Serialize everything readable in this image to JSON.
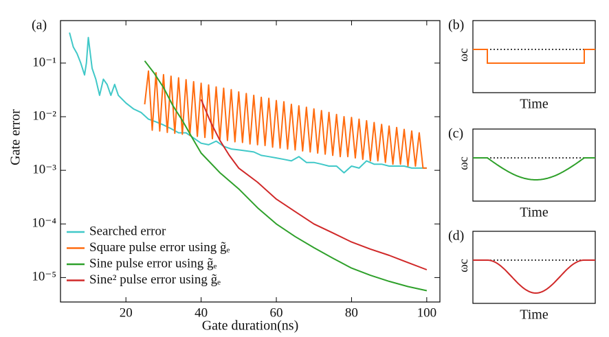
{
  "chart_data": {
    "type": "line",
    "panel_label": "(a)",
    "xlabel": "Gate duration(ns)",
    "ylabel": "Gate error",
    "log_y": true,
    "xlim": [
      2.6,
      103.5
    ],
    "ylim": [
      3.5e-06,
      0.62
    ],
    "xticks": [
      20,
      40,
      60,
      80,
      100
    ],
    "yticks": [
      {
        "value": 0.1,
        "label": "10⁻¹"
      },
      {
        "value": 0.01,
        "label": "10⁻²"
      },
      {
        "value": 0.001,
        "label": "10⁻³"
      },
      {
        "value": 0.0001,
        "label": "10⁻⁴"
      },
      {
        "value": 1e-05,
        "label": "10⁻⁵"
      }
    ],
    "legend": "lower left",
    "series": [
      {
        "name": "Searched error",
        "color": "#40c8c8",
        "x": [
          5,
          6,
          7,
          8,
          9,
          9.5,
          10,
          11,
          12,
          13,
          14,
          15,
          16,
          17,
          18,
          20,
          22,
          24,
          26,
          28,
          30,
          32,
          34,
          36,
          38,
          40,
          42,
          44,
          46,
          48,
          50,
          52,
          54,
          56,
          58,
          60,
          62,
          64,
          66,
          68,
          70,
          72,
          74,
          76,
          78,
          80,
          82,
          84,
          86,
          88,
          90,
          92,
          94,
          96,
          98,
          100
        ],
        "values": [
          0.37,
          0.2,
          0.15,
          0.1,
          0.06,
          0.1,
          0.3,
          0.08,
          0.05,
          0.025,
          0.05,
          0.04,
          0.025,
          0.04,
          0.025,
          0.018,
          0.014,
          0.012,
          0.009,
          0.008,
          0.007,
          0.006,
          0.005,
          0.005,
          0.004,
          0.0032,
          0.003,
          0.0035,
          0.0028,
          0.0025,
          0.0024,
          0.0023,
          0.0022,
          0.0019,
          0.0018,
          0.0017,
          0.0016,
          0.0015,
          0.0018,
          0.0014,
          0.0014,
          0.0013,
          0.0012,
          0.0012,
          0.0009,
          0.0012,
          0.0011,
          0.0015,
          0.0013,
          0.0013,
          0.0012,
          0.0012,
          0.0012,
          0.0011,
          0.0011,
          0.0011
        ]
      },
      {
        "name": "Square pulse error using g̃ₑ",
        "color": "#ff6c10",
        "x": [
          25,
          26,
          27,
          28,
          29,
          30,
          31,
          32,
          33,
          34,
          35,
          36,
          37,
          38,
          39,
          40,
          41,
          42,
          43,
          44,
          45,
          46,
          47,
          48,
          49,
          50,
          51,
          52,
          53,
          54,
          55,
          56,
          57,
          58,
          59,
          60,
          61,
          62,
          63,
          64,
          65,
          66,
          67,
          68,
          69,
          70,
          71,
          72,
          73,
          74,
          75,
          76,
          77,
          78,
          79,
          80,
          81,
          82,
          83,
          84,
          85,
          86,
          87,
          88,
          89,
          90,
          91,
          92,
          93,
          94,
          95,
          96,
          97,
          98,
          99,
          100
        ],
        "values": [
          0.017,
          0.071,
          0.0056,
          0.066,
          0.0054,
          0.061,
          0.0051,
          0.057,
          0.0049,
          0.053,
          0.0047,
          0.049,
          0.0045,
          0.045,
          0.0043,
          0.042,
          0.0041,
          0.039,
          0.0039,
          0.036,
          0.0038,
          0.034,
          0.0036,
          0.032,
          0.0034,
          0.029,
          0.0033,
          0.027,
          0.0031,
          0.025,
          0.003,
          0.023,
          0.0029,
          0.022,
          0.0027,
          0.02,
          0.0026,
          0.019,
          0.0025,
          0.017,
          0.0024,
          0.016,
          0.0023,
          0.015,
          0.0022,
          0.014,
          0.0021,
          0.013,
          0.002,
          0.012,
          0.0019,
          0.011,
          0.0018,
          0.01,
          0.0018,
          0.0097,
          0.0017,
          0.009,
          0.0016,
          0.0084,
          0.0015,
          0.0078,
          0.0015,
          0.0072,
          0.0014,
          0.0067,
          0.0013,
          0.0063,
          0.0013,
          0.0058,
          0.0012,
          0.0054,
          0.0012,
          0.005,
          0.0011,
          0.0011
        ]
      },
      {
        "name": "Sine pulse error using g̃ₑ",
        "color": "#2ea02a",
        "x": [
          25,
          27.5,
          30,
          32.5,
          35,
          37.5,
          40,
          45,
          50,
          55,
          60,
          65,
          70,
          75,
          80,
          85,
          90,
          95,
          100
        ],
        "values": [
          0.11,
          0.065,
          0.035,
          0.016,
          0.0085,
          0.0042,
          0.0021,
          0.0009,
          0.00045,
          0.0002,
          0.0001,
          5.8e-05,
          3.6e-05,
          2.3e-05,
          1.5e-05,
          1.1e-05,
          8.5e-06,
          6.8e-06,
          5.7e-06
        ]
      },
      {
        "name": "Sine² pulse error using g̃ₑ",
        "color": "#d02828",
        "x": [
          40,
          42.5,
          45,
          47.5,
          50,
          55,
          60,
          65,
          70,
          75,
          80,
          85,
          90,
          95,
          100
        ],
        "values": [
          0.021,
          0.008,
          0.0036,
          0.0019,
          0.0011,
          0.0006,
          0.00029,
          0.00017,
          0.0001,
          6.8e-05,
          4.6e-05,
          3.4e-05,
          2.6e-05,
          1.9e-05,
          1.4e-05
        ]
      }
    ]
  },
  "panels": [
    {
      "label": "(b)",
      "ylabel": "ωc",
      "xlabel": "Time",
      "color": "#ff6c10"
    },
    {
      "label": "(c)",
      "ylabel": "ωc",
      "xlabel": "Time",
      "color": "#2ea02a"
    },
    {
      "label": "(d)",
      "ylabel": "ωc",
      "xlabel": "Time",
      "color": "#d02828"
    }
  ]
}
